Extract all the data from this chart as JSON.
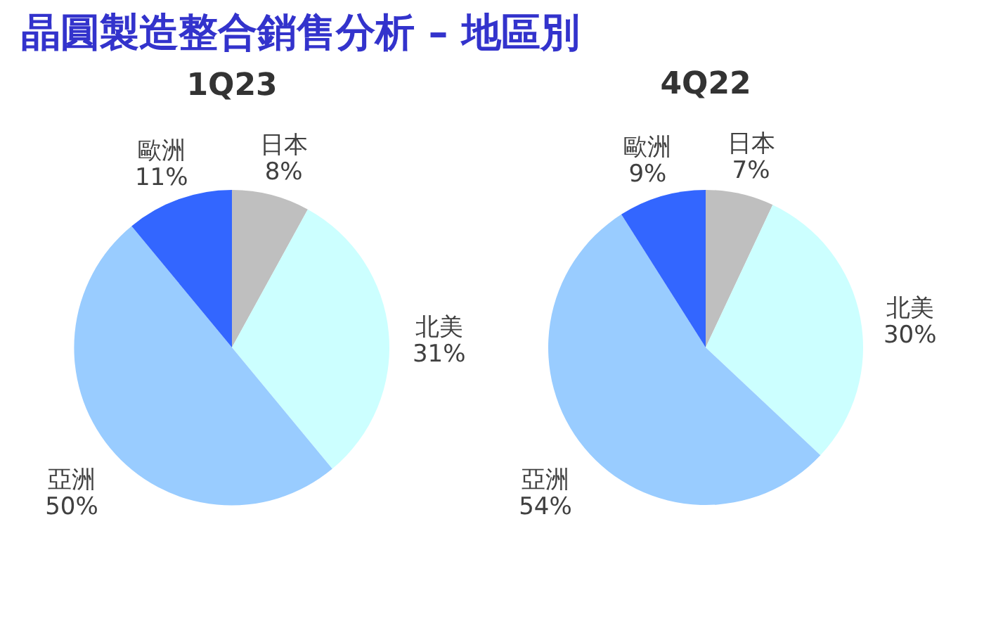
{
  "chart_data": [
    {
      "type": "pie",
      "title": "1Q23",
      "annotations": [
        "晶圓製造整合銷售分析 – 地區別"
      ],
      "categories": [
        "日本",
        "北美",
        "亞洲",
        "歐洲"
      ],
      "values": [
        8,
        31,
        50,
        11
      ],
      "value_labels": [
        "8%",
        "31%",
        "50%",
        "11%"
      ],
      "colors": [
        "#bfbfbf",
        "#ccffff",
        "#99ccff",
        "#3366ff"
      ],
      "legend": false
    },
    {
      "type": "pie",
      "title": "4Q22",
      "categories": [
        "日本",
        "北美",
        "亞洲",
        "歐洲"
      ],
      "values": [
        7,
        30,
        54,
        9
      ],
      "value_labels": [
        "7%",
        "30%",
        "54%",
        "9%"
      ],
      "colors": [
        "#bfbfbf",
        "#ccffff",
        "#99ccff",
        "#3366ff"
      ],
      "legend": false
    }
  ]
}
